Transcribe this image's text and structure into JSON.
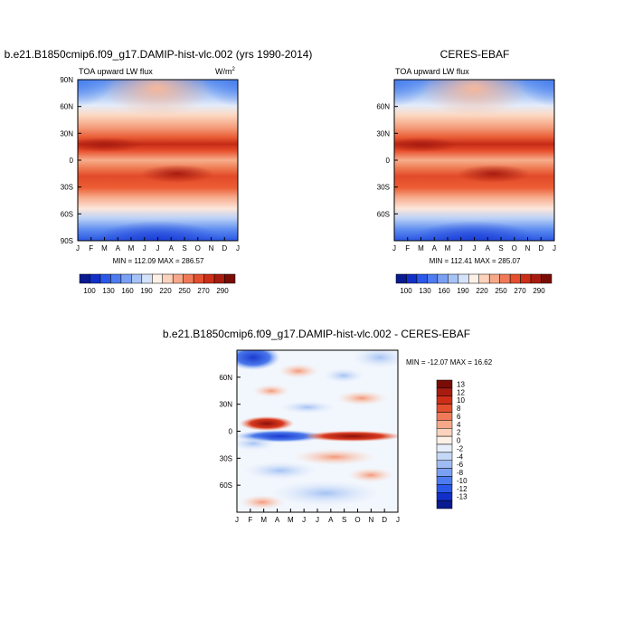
{
  "panels": [
    {
      "title": "b.e21.B1850cmip6.f09_g17.DAMIP-hist-vlc.002 (yrs 1990-2014)",
      "subtitle": "TOA upward LW flux",
      "units": "W/m",
      "units_exp": "2",
      "yticks": [
        "90N",
        "60N",
        "30N",
        "0",
        "30S",
        "60S",
        "90S"
      ],
      "xticks": [
        "J",
        "F",
        "M",
        "A",
        "M",
        "J",
        "J",
        "A",
        "S",
        "O",
        "N",
        "D",
        "J"
      ],
      "minmax": "MIN = 112.09 MAX = 286.57",
      "colorbar": [
        100,
        130,
        160,
        190,
        220,
        250,
        270,
        290
      ]
    },
    {
      "title": "CERES-EBAF",
      "subtitle": "TOA upward LW flux",
      "yticks": [
        "60N",
        "30N",
        "0",
        "30S",
        "60S"
      ],
      "xticks": [
        "J",
        "F",
        "M",
        "A",
        "M",
        "J",
        "J",
        "A",
        "S",
        "O",
        "N",
        "D",
        "J"
      ],
      "minmax": "MIN = 112.41 MAX = 285.07",
      "colorbar": [
        100,
        130,
        160,
        190,
        220,
        250,
        270,
        290
      ]
    }
  ],
  "diff": {
    "title": "b.e21.B1850cmip6.f09_g17.DAMIP-hist-vlc.002 - CERES-EBAF",
    "minmax": "MIN = -12.07 MAX =  16.62",
    "yticks": [
      "60N",
      "30N",
      "0",
      "30S",
      "60S"
    ],
    "xticks": [
      "J",
      "F",
      "M",
      "A",
      "M",
      "J",
      "J",
      "A",
      "S",
      "O",
      "N",
      "D",
      "J"
    ],
    "colorbar": [
      13,
      12,
      10,
      8,
      6,
      4,
      2,
      0,
      -2,
      -4,
      -6,
      -8,
      -10,
      -12,
      -13
    ]
  }
}
